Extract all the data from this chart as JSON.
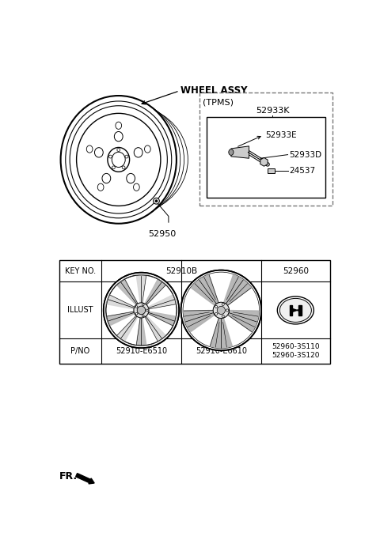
{
  "bg_color": "#ffffff",
  "fig_width": 4.8,
  "fig_height": 7.07,
  "dpi": 100,
  "wheel_assy_label": "WHEEL ASSY",
  "part_52950_label": "52950",
  "tpms_label": "(TPMS)",
  "tpms_52933K_label": "52933K",
  "tpms_52933E_label": "52933E",
  "tpms_52933D_label": "52933D",
  "tpms_24537_label": "24537",
  "key_no_label": "KEY NO.",
  "illust_label": "ILLUST",
  "pno_label": "P/NO",
  "col_52910B": "52910B",
  "col_52960": "52960",
  "pno_52910_e6510": "52910-E6510",
  "pno_52910_e6610": "52910-E6610",
  "pno_52960_3s110": "52960-3S110",
  "pno_52960_3s120": "52960-3S120",
  "fr_label": "FR.",
  "line_color": "#000000",
  "text_color": "#000000",
  "gray_light": "#cccccc",
  "gray_mid": "#999999",
  "gray_dark": "#666666"
}
